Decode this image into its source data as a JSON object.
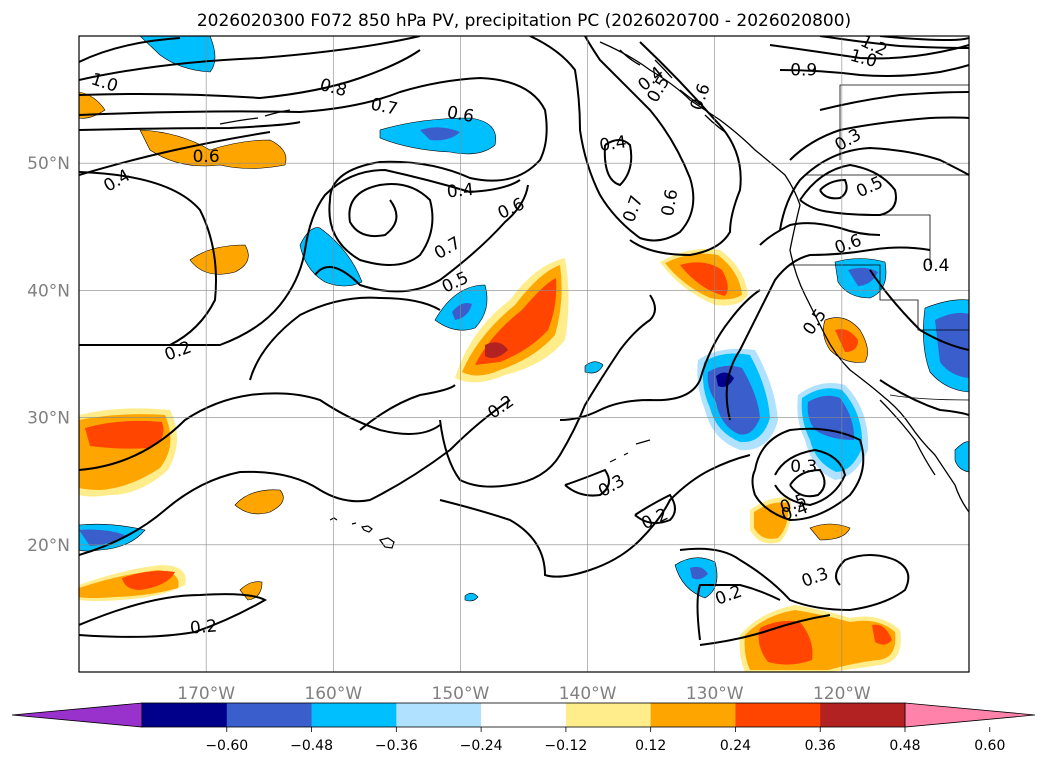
{
  "chart_data": {
    "type": "heatmap",
    "title": "2026020300 F072 850 hPa PV, precipitation PC (2026020700 - 2026020800)",
    "xlabel": "",
    "ylabel": "",
    "x_range_deg": [
      -180,
      -110
    ],
    "y_range_deg": [
      10,
      60
    ],
    "grid": true,
    "lon_ticks": [
      {
        "value": -170,
        "label": "170°W"
      },
      {
        "value": -160,
        "label": "160°W"
      },
      {
        "value": -150,
        "label": "150°W"
      },
      {
        "value": -140,
        "label": "140°W"
      },
      {
        "value": -130,
        "label": "130°W"
      },
      {
        "value": -120,
        "label": "120°W"
      }
    ],
    "lat_ticks": [
      {
        "value": 20,
        "label": "20°N"
      },
      {
        "value": 30,
        "label": "30°N"
      },
      {
        "value": 40,
        "label": "40°N"
      },
      {
        "value": 50,
        "label": "50°N"
      }
    ],
    "colorbar": {
      "boundaries": [
        -0.6,
        -0.48,
        -0.36,
        -0.24,
        -0.12,
        0.12,
        0.24,
        0.36,
        0.48,
        0.6
      ],
      "tick_labels": [
        "−0.60",
        "−0.48",
        "−0.36",
        "−0.24",
        "−0.12",
        "0.12",
        "0.24",
        "0.36",
        "0.48",
        "0.60"
      ],
      "colors": [
        "#9932cc",
        "#00008b",
        "#3a5fcd",
        "#00bfff",
        "#b0e2ff",
        "#ffffff",
        "#ffec8b",
        "#ffa500",
        "#ff4500",
        "#b22222",
        "#ff82ab"
      ],
      "extend": "both"
    },
    "contour_labels": [
      {
        "lon": -178,
        "lat": 56.3,
        "text": "1.0",
        "rot": -18
      },
      {
        "lon": -160,
        "lat": 55.9,
        "text": "0.8",
        "rot": -15
      },
      {
        "lon": -156,
        "lat": 54.4,
        "text": "0.7",
        "rot": -12
      },
      {
        "lon": -150,
        "lat": 53.8,
        "text": "0.6",
        "rot": -10
      },
      {
        "lon": -138,
        "lat": 51.5,
        "text": "0.4",
        "rot": 8
      },
      {
        "lon": -150,
        "lat": 47.8,
        "text": "0.4",
        "rot": 6
      },
      {
        "lon": -135,
        "lat": 56.6,
        "text": "0.4",
        "rot": 40
      },
      {
        "lon": -177,
        "lat": 48.6,
        "text": "0.4",
        "rot": 30
      },
      {
        "lon": -170,
        "lat": 50.5,
        "text": "0.6",
        "rot": 0
      },
      {
        "lon": -123,
        "lat": 57.3,
        "text": "0.9",
        "rot": 0
      },
      {
        "lon": -118.3,
        "lat": 58.2,
        "text": "1.0",
        "rot": -15
      },
      {
        "lon": -117.5,
        "lat": 59.2,
        "text": "1.2",
        "rot": -25
      },
      {
        "lon": -119.5,
        "lat": 51.8,
        "text": "0.3",
        "rot": 30
      },
      {
        "lon": -117.8,
        "lat": 48.1,
        "text": "0.5",
        "rot": 25
      },
      {
        "lon": -119.5,
        "lat": 43.6,
        "text": "0.6",
        "rot": 20
      },
      {
        "lon": -112.6,
        "lat": 41.9,
        "text": "0.4",
        "rot": 0
      },
      {
        "lon": -122.1,
        "lat": 37.5,
        "text": "0.5",
        "rot": 55
      },
      {
        "lon": -131.1,
        "lat": 55.2,
        "text": "0.6",
        "rot": 70
      },
      {
        "lon": -134.4,
        "lat": 55.8,
        "text": "0.5",
        "rot": 60
      },
      {
        "lon": -133.5,
        "lat": 46.9,
        "text": "0.6",
        "rot": 80
      },
      {
        "lon": -136.4,
        "lat": 46.4,
        "text": "0.7",
        "rot": 70
      },
      {
        "lon": -146,
        "lat": 46.4,
        "text": "0.6",
        "rot": 25
      },
      {
        "lon": -151,
        "lat": 43.3,
        "text": "0.7",
        "rot": 30
      },
      {
        "lon": -150.4,
        "lat": 40.6,
        "text": "0.5",
        "rot": 25
      },
      {
        "lon": -172.2,
        "lat": 35.2,
        "text": "0.2",
        "rot": 20
      },
      {
        "lon": -146.8,
        "lat": 30.8,
        "text": "0.2",
        "rot": 35
      },
      {
        "lon": -138.1,
        "lat": 24.6,
        "text": "0.3",
        "rot": 30
      },
      {
        "lon": -134.7,
        "lat": 22.0,
        "text": "0.2",
        "rot": 25
      },
      {
        "lon": -123.0,
        "lat": 26.1,
        "text": "0.3",
        "rot": 0
      },
      {
        "lon": -123.8,
        "lat": 23.2,
        "text": "0.5",
        "rot": 20
      },
      {
        "lon": -123.7,
        "lat": 22.6,
        "text": "0.4",
        "rot": 20
      },
      {
        "lon": -122.1,
        "lat": 17.4,
        "text": "0.3",
        "rot": 20
      },
      {
        "lon": -128.9,
        "lat": 16.0,
        "text": "0.2",
        "rot": 20
      },
      {
        "lon": -170.2,
        "lat": 13.5,
        "text": "0.2",
        "rot": 5
      }
    ]
  }
}
